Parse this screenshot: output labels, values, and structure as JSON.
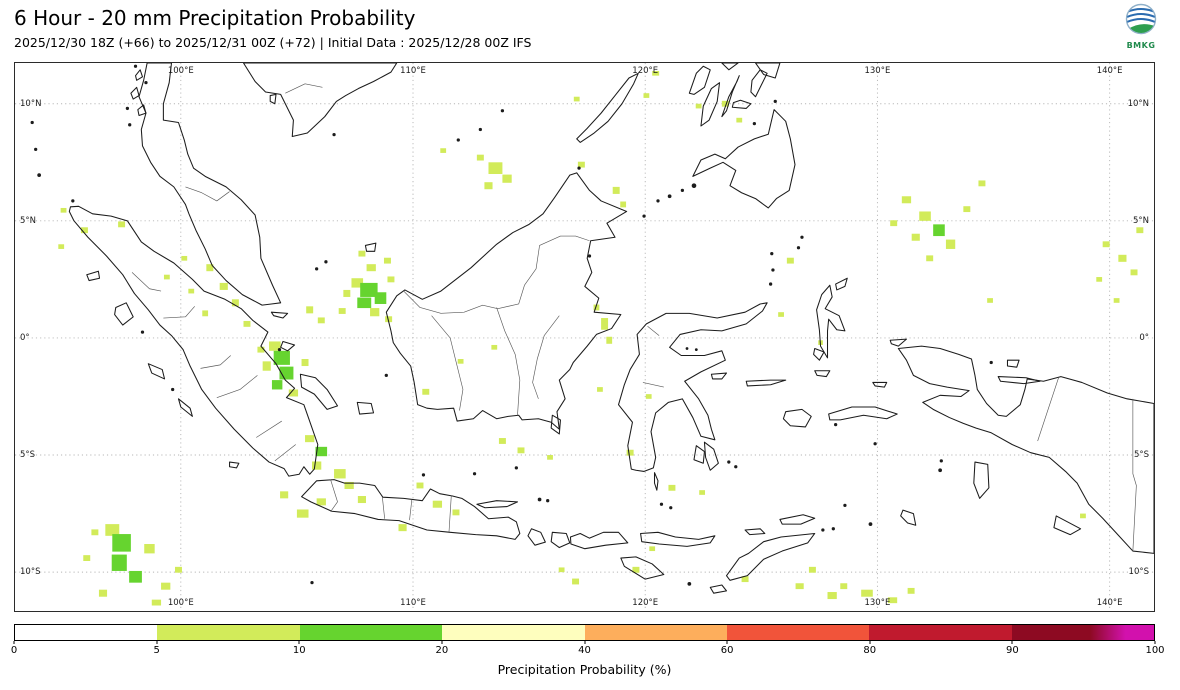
{
  "header": {
    "title": "6 Hour - 20 mm Precipitation Probability",
    "subtitle": "2025/12/30 18Z (+66) to 2025/12/31 00Z (+72) | Initial Data : 2025/12/28 00Z IFS",
    "logo_text": "BMKG",
    "logo_colors": {
      "globe_blue": "#2b6cb0",
      "land_green": "#2e9e4f",
      "ring": "#8fb0c9"
    }
  },
  "map": {
    "bounds": {
      "lon_min": 92.86,
      "lon_max": 141.91,
      "lat_min": -11.66,
      "lat_max": 11.74
    },
    "lon_labels": [
      {
        "value": 100,
        "label": "100°E"
      },
      {
        "value": 110,
        "label": "110°E"
      },
      {
        "value": 120,
        "label": "120°E"
      },
      {
        "value": 130,
        "label": "130°E"
      },
      {
        "value": 140,
        "label": "140°E"
      }
    ],
    "lat_labels": [
      {
        "value": 10,
        "label": "10°N"
      },
      {
        "value": 5,
        "label": "5°N"
      },
      {
        "value": 0,
        "label": "0°"
      },
      {
        "value": -5,
        "label": "5°S"
      },
      {
        "value": -10,
        "label": "10°S"
      }
    ],
    "precip_levels": [
      {
        "range": "5-10",
        "color": "#d2eb5a"
      },
      {
        "range": "10-20",
        "color": "#66d42f"
      }
    ],
    "patches": [
      [
        107.6,
        2.35,
        0.5,
        0.4,
        0
      ],
      [
        108.1,
        2.05,
        0.75,
        0.6,
        1
      ],
      [
        108.6,
        1.7,
        0.5,
        0.5,
        1
      ],
      [
        107.9,
        1.5,
        0.6,
        0.45,
        1
      ],
      [
        108.35,
        1.1,
        0.4,
        0.35,
        0
      ],
      [
        107.15,
        1.9,
        0.3,
        0.3,
        0
      ],
      [
        109.05,
        2.5,
        0.3,
        0.25,
        0
      ],
      [
        106.95,
        1.15,
        0.3,
        0.25,
        0
      ],
      [
        108.95,
        0.8,
        0.3,
        0.25,
        0
      ],
      [
        108.2,
        3.0,
        0.4,
        0.3,
        0
      ],
      [
        107.8,
        3.6,
        0.3,
        0.25,
        0
      ],
      [
        108.9,
        3.3,
        0.3,
        0.25,
        0
      ],
      [
        104.05,
        -0.35,
        0.5,
        0.4,
        0
      ],
      [
        104.35,
        -0.85,
        0.7,
        0.6,
        1
      ],
      [
        104.55,
        -1.5,
        0.6,
        0.55,
        1
      ],
      [
        104.15,
        -2.0,
        0.45,
        0.4,
        1
      ],
      [
        104.85,
        -2.35,
        0.4,
        0.3,
        0
      ],
      [
        103.7,
        -1.2,
        0.35,
        0.4,
        0
      ],
      [
        105.35,
        -1.05,
        0.3,
        0.3,
        0
      ],
      [
        103.45,
        -0.5,
        0.3,
        0.25,
        0
      ],
      [
        101.25,
        3.0,
        0.3,
        0.3,
        0
      ],
      [
        101.85,
        2.2,
        0.35,
        0.3,
        0
      ],
      [
        102.35,
        1.5,
        0.3,
        0.3,
        0
      ],
      [
        101.05,
        1.05,
        0.25,
        0.25,
        0
      ],
      [
        102.85,
        0.6,
        0.3,
        0.25,
        0
      ],
      [
        100.45,
        2.0,
        0.25,
        0.2,
        0
      ],
      [
        100.15,
        3.4,
        0.25,
        0.2,
        0
      ],
      [
        99.4,
        2.6,
        0.25,
        0.2,
        0
      ],
      [
        105.55,
        1.2,
        0.3,
        0.3,
        0
      ],
      [
        106.05,
        0.75,
        0.3,
        0.25,
        0
      ],
      [
        94.95,
        5.45,
        0.25,
        0.2,
        0
      ],
      [
        95.85,
        4.6,
        0.3,
        0.25,
        0
      ],
      [
        97.45,
        4.85,
        0.3,
        0.25,
        0
      ],
      [
        94.85,
        3.9,
        0.25,
        0.2,
        0
      ],
      [
        105.55,
        -4.3,
        0.4,
        0.3,
        0
      ],
      [
        106.05,
        -4.85,
        0.5,
        0.4,
        1
      ],
      [
        105.85,
        -5.45,
        0.4,
        0.35,
        0
      ],
      [
        106.85,
        -5.8,
        0.5,
        0.4,
        0
      ],
      [
        107.25,
        -6.3,
        0.4,
        0.3,
        0
      ],
      [
        106.05,
        -7.0,
        0.4,
        0.3,
        0
      ],
      [
        105.25,
        -7.5,
        0.5,
        0.35,
        0
      ],
      [
        104.45,
        -6.7,
        0.35,
        0.3,
        0
      ],
      [
        107.8,
        -6.9,
        0.35,
        0.3,
        0
      ],
      [
        109.55,
        -8.1,
        0.35,
        0.3,
        0
      ],
      [
        111.05,
        -7.1,
        0.4,
        0.3,
        0
      ],
      [
        111.85,
        -7.45,
        0.3,
        0.25,
        0
      ],
      [
        110.3,
        -6.3,
        0.3,
        0.25,
        0
      ],
      [
        97.05,
        -8.2,
        0.6,
        0.5,
        0
      ],
      [
        97.45,
        -8.75,
        0.8,
        0.75,
        1
      ],
      [
        97.35,
        -9.6,
        0.65,
        0.7,
        1
      ],
      [
        98.05,
        -10.2,
        0.55,
        0.5,
        1
      ],
      [
        98.65,
        -9.0,
        0.45,
        0.4,
        0
      ],
      [
        99.35,
        -10.6,
        0.4,
        0.3,
        0
      ],
      [
        96.65,
        -10.9,
        0.35,
        0.3,
        0
      ],
      [
        98.95,
        -11.3,
        0.4,
        0.25,
        0
      ],
      [
        95.95,
        -9.4,
        0.3,
        0.25,
        0
      ],
      [
        99.9,
        -9.9,
        0.3,
        0.25,
        0
      ],
      [
        96.3,
        -8.3,
        0.3,
        0.25,
        0
      ],
      [
        113.55,
        7.25,
        0.6,
        0.5,
        0
      ],
      [
        114.05,
        6.8,
        0.4,
        0.35,
        0
      ],
      [
        113.25,
        6.5,
        0.35,
        0.3,
        0
      ],
      [
        112.9,
        7.7,
        0.3,
        0.25,
        0
      ],
      [
        111.3,
        8.0,
        0.25,
        0.2,
        0
      ],
      [
        117.25,
        7.4,
        0.3,
        0.25,
        0
      ],
      [
        118.75,
        6.3,
        0.3,
        0.3,
        0
      ],
      [
        119.05,
        5.7,
        0.25,
        0.25,
        0
      ],
      [
        117.05,
        10.2,
        0.25,
        0.2,
        0
      ],
      [
        120.45,
        11.3,
        0.3,
        0.2,
        0
      ],
      [
        120.05,
        10.35,
        0.25,
        0.2,
        0
      ],
      [
        123.45,
        10.0,
        0.3,
        0.25,
        0
      ],
      [
        124.05,
        9.3,
        0.25,
        0.2,
        0
      ],
      [
        122.3,
        9.9,
        0.25,
        0.2,
        0
      ],
      [
        131.25,
        5.9,
        0.4,
        0.3,
        0
      ],
      [
        132.05,
        5.2,
        0.5,
        0.4,
        0
      ],
      [
        132.65,
        4.6,
        0.5,
        0.5,
        1
      ],
      [
        133.15,
        4.0,
        0.4,
        0.4,
        0
      ],
      [
        131.65,
        4.3,
        0.35,
        0.3,
        0
      ],
      [
        133.85,
        5.5,
        0.3,
        0.25,
        0
      ],
      [
        132.25,
        3.4,
        0.3,
        0.25,
        0
      ],
      [
        130.7,
        4.9,
        0.3,
        0.25,
        0
      ],
      [
        134.5,
        6.6,
        0.3,
        0.25,
        0
      ],
      [
        126.25,
        3.3,
        0.3,
        0.25,
        0
      ],
      [
        139.85,
        4.0,
        0.3,
        0.25,
        0
      ],
      [
        140.55,
        3.4,
        0.35,
        0.3,
        0
      ],
      [
        141.05,
        2.8,
        0.3,
        0.25,
        0
      ],
      [
        139.55,
        2.5,
        0.25,
        0.2,
        0
      ],
      [
        141.3,
        4.6,
        0.3,
        0.25,
        0
      ],
      [
        140.3,
        1.6,
        0.25,
        0.2,
        0
      ],
      [
        118.25,
        0.6,
        0.3,
        0.5,
        0
      ],
      [
        118.45,
        -0.1,
        0.25,
        0.3,
        0
      ],
      [
        117.9,
        1.3,
        0.25,
        0.25,
        0
      ],
      [
        110.55,
        -2.3,
        0.3,
        0.25,
        0
      ],
      [
        112.05,
        -1.0,
        0.25,
        0.2,
        0
      ],
      [
        113.5,
        -0.4,
        0.25,
        0.2,
        0
      ],
      [
        118.05,
        -2.2,
        0.25,
        0.2,
        0
      ],
      [
        113.85,
        -4.4,
        0.3,
        0.25,
        0
      ],
      [
        114.65,
        -4.8,
        0.3,
        0.25,
        0
      ],
      [
        115.9,
        -5.1,
        0.25,
        0.2,
        0
      ],
      [
        119.35,
        -4.9,
        0.3,
        0.25,
        0
      ],
      [
        121.15,
        -6.4,
        0.3,
        0.25,
        0
      ],
      [
        122.45,
        -6.6,
        0.25,
        0.2,
        0
      ],
      [
        120.15,
        -2.5,
        0.25,
        0.2,
        0
      ],
      [
        127.55,
        -0.2,
        0.2,
        0.2,
        0
      ],
      [
        125.85,
        1.0,
        0.25,
        0.2,
        0
      ],
      [
        126.65,
        -10.6,
        0.35,
        0.25,
        0
      ],
      [
        128.05,
        -11.0,
        0.4,
        0.3,
        0
      ],
      [
        128.55,
        -10.6,
        0.3,
        0.25,
        0
      ],
      [
        129.55,
        -10.9,
        0.5,
        0.3,
        0
      ],
      [
        130.65,
        -11.2,
        0.4,
        0.25,
        0
      ],
      [
        131.45,
        -10.8,
        0.3,
        0.25,
        0
      ],
      [
        127.2,
        -9.9,
        0.3,
        0.25,
        0
      ],
      [
        124.3,
        -10.3,
        0.3,
        0.25,
        0
      ],
      [
        117.0,
        -10.4,
        0.3,
        0.25,
        0
      ],
      [
        116.4,
        -9.9,
        0.25,
        0.2,
        0
      ],
      [
        119.6,
        -9.9,
        0.3,
        0.25,
        0
      ],
      [
        120.3,
        -9.0,
        0.25,
        0.2,
        0
      ],
      [
        134.85,
        1.6,
        0.25,
        0.2,
        0
      ],
      [
        138.85,
        -7.6,
        0.25,
        0.2,
        0
      ]
    ]
  },
  "colorbar": {
    "title": "Precipitation Probability (%)",
    "ticks": [
      "0",
      "5",
      "10",
      "20",
      "40",
      "60",
      "80",
      "90",
      "100"
    ],
    "segments": [
      {
        "from": 0,
        "to": 5,
        "color": "#ffffff"
      },
      {
        "from": 5,
        "to": 10,
        "color": "#d2eb5a"
      },
      {
        "from": 10,
        "to": 20,
        "color": "#66d42f"
      },
      {
        "from": 20,
        "to": 40,
        "color": "#fefebe"
      },
      {
        "from": 40,
        "to": 60,
        "color": "#fdae5c"
      },
      {
        "from": 60,
        "to": 80,
        "color": "#f1543a"
      },
      {
        "from": 80,
        "to": 90,
        "color": "#c01a2e"
      },
      {
        "from": 90,
        "to": 100,
        "color": "#8d0a22",
        "color_end": "#d211ad"
      }
    ]
  }
}
